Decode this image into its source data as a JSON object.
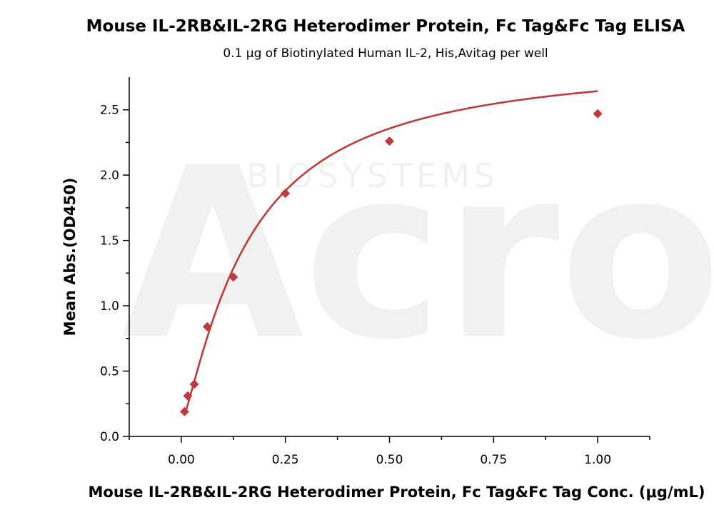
{
  "chart_data": {
    "type": "scatter",
    "title": "Mouse IL-2RB&IL-2RG Heterodimer Protein, Fc Tag&Fc Tag  ELISA",
    "subtitle": "0.1 μg of Biotinylated Human IL-2, His,Avitag per well",
    "xlabel": "Mouse IL-2RB&IL-2RG Heterodimer Protein, Fc Tag&Fc Tag  Conc. (μg/mL)",
    "ylabel": "Mean Abs.(OD450)",
    "xlim": [
      -0.125,
      1.125
    ],
    "ylim": [
      0,
      2.75
    ],
    "x_ticks": [
      0.0,
      0.25,
      0.5,
      0.75,
      1.0
    ],
    "x_tick_labels": [
      "0.00",
      "0.25",
      "0.50",
      "0.75",
      "1.00"
    ],
    "y_ticks": [
      0.0,
      0.5,
      1.0,
      1.5,
      2.0,
      2.5
    ],
    "y_tick_labels": [
      "0.0",
      "0.5",
      "1.0",
      "1.5",
      "2.0",
      "2.5"
    ],
    "grid": false,
    "marker": "diamond",
    "color": "#c0393b",
    "series": [
      {
        "x": [
          0.0078,
          0.0156,
          0.03125,
          0.0625,
          0.125,
          0.25,
          0.5,
          1.0
        ],
        "y": [
          0.19,
          0.31,
          0.4,
          0.84,
          1.22,
          1.86,
          2.26,
          2.47
        ],
        "fit": "4PL"
      }
    ]
  },
  "watermark": {
    "brand": "Acro",
    "tagline": "BIOSYSTEMS",
    "color": "#f1f1f1"
  }
}
